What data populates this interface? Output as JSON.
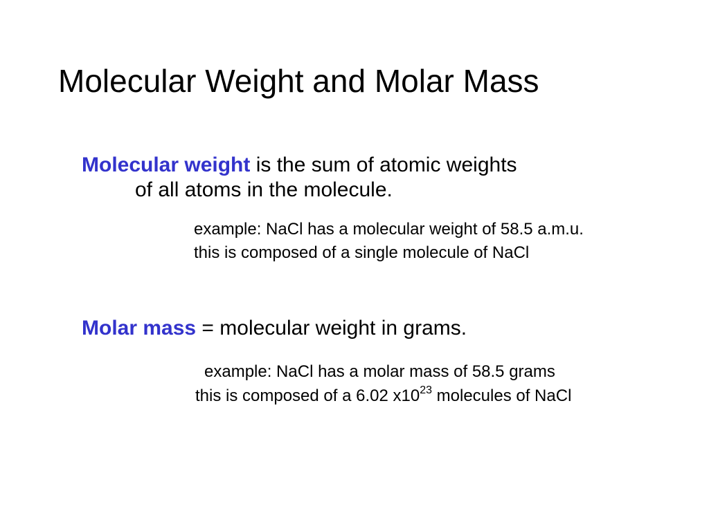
{
  "slide": {
    "title": "Molecular Weight and Molar Mass",
    "background_color": "#ffffff",
    "title_color": "#000000",
    "title_fontsize": 46,
    "term_color": "#3333cc",
    "body_color": "#000000",
    "body_fontsize": 30,
    "example_fontsize": 24
  },
  "section1": {
    "term": "Molecular weight",
    "definition_part1": " is the sum of atomic weights",
    "definition_line2": "of all atoms in the molecule.",
    "example_line1": "example:  NaCl has a molecular weight of 58.5 a.m.u.",
    "example_line2": "this is composed of a single molecule of NaCl"
  },
  "section2": {
    "term": "Molar mass",
    "definition": " = molecular weight in grams.",
    "example_line1": "example:  NaCl has a molar mass of 58.5 grams",
    "example_line2_pre": "this is composed of a 6.02 x10",
    "example_line2_sup": "23",
    "example_line2_post": " molecules of NaCl"
  }
}
